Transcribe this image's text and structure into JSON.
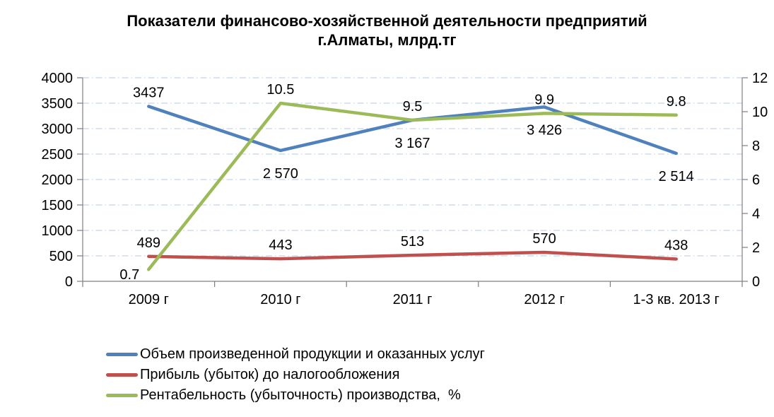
{
  "header": {
    "title_line1": "Показатели финансово-хозяйственной деятельности предприятий",
    "title_line2": "г.Алматы, млрд.тг"
  },
  "chart_data": {
    "type": "line",
    "title": "Показатели финансово-хозяйственной деятельности предприятий г.Алматы, млрд.тг",
    "categories": [
      "2009 г",
      "2010 г",
      "2011 г",
      "2012 г",
      "1-3 кв. 2013 г"
    ],
    "series": [
      {
        "key": "output-volume",
        "name": "Объем произведенной продукции и оказанных услуг",
        "axis": "left",
        "color": "#4F81BD",
        "values": [
          3437,
          2570,
          3167,
          3426,
          2514
        ],
        "labels": [
          "3437",
          "2 570",
          "3 167",
          "3 426",
          "2 514"
        ],
        "label_positions": [
          "above",
          "below",
          "below",
          "below",
          "below"
        ]
      },
      {
        "key": "profit-before-tax",
        "name": "Прибыль (убыток) до налогообложения",
        "axis": "left",
        "color": "#C0504D",
        "values": [
          489,
          443,
          513,
          570,
          438
        ],
        "labels": [
          "489",
          "443",
          "513",
          "570",
          "438"
        ],
        "label_positions": [
          "above",
          "above",
          "above",
          "above",
          "above"
        ]
      },
      {
        "key": "profitability",
        "name": "Рентабельность (убыточность) производства,  %",
        "axis": "right",
        "color": "#9BBB59",
        "values": [
          0.7,
          10.5,
          9.5,
          9.9,
          9.8
        ],
        "labels": [
          "0.7",
          "10.5",
          "9.5",
          "9.9",
          "9.8"
        ],
        "label_positions": [
          "below-left",
          "above",
          "above",
          "above",
          "above"
        ]
      }
    ],
    "left_axis": {
      "min": 0,
      "max": 4000,
      "step": 500,
      "ticks": [
        "0",
        "500",
        "1000",
        "1500",
        "2000",
        "2500",
        "3000",
        "3500",
        "4000"
      ]
    },
    "right_axis": {
      "min": 0,
      "max": 12,
      "step": 2,
      "ticks": [
        "0",
        "2",
        "4",
        "6",
        "8",
        "10",
        "12"
      ]
    },
    "grid": true,
    "gridline_color": "#CFDCEE",
    "axis_color": "#7F7F7F",
    "legend_position": "bottom-left"
  }
}
